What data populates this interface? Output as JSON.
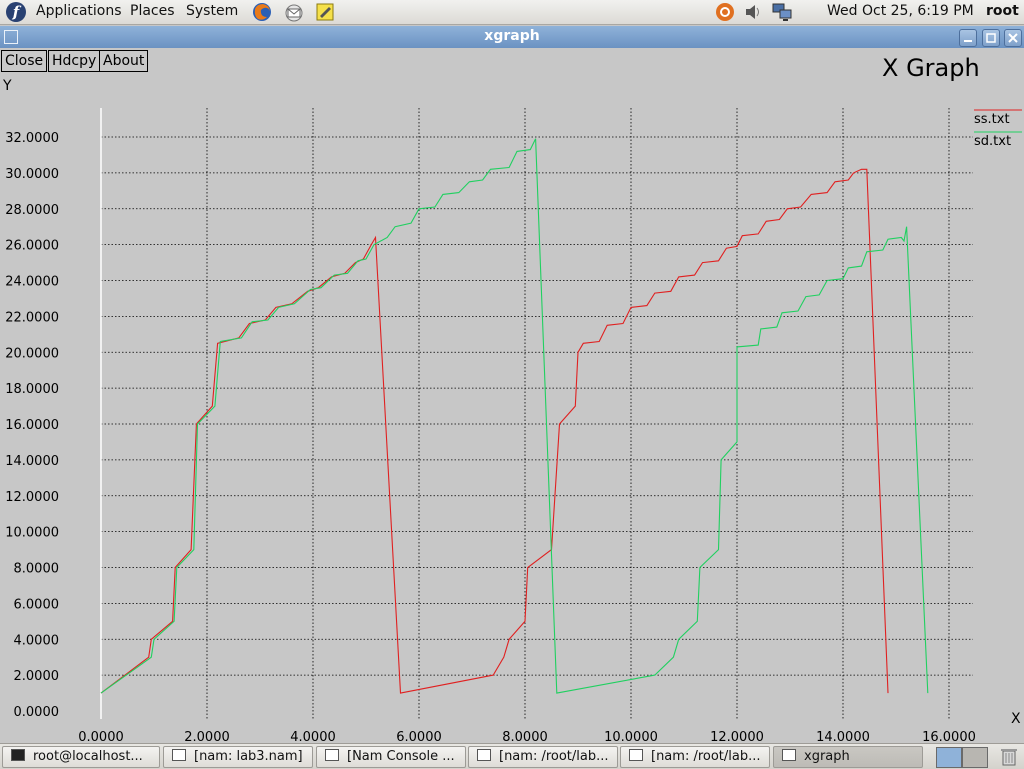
{
  "top_panel": {
    "menus": [
      "Applications",
      "Places",
      "System"
    ],
    "clock": "Wed Oct 25,  6:19 PM",
    "user": "root",
    "logo_letter": "f"
  },
  "window": {
    "title": "xgraph",
    "buttons": [
      "Close",
      "Hdcpy",
      "About"
    ],
    "graph_title": "X Graph",
    "accent": "#7aa0cc"
  },
  "chart_data": {
    "type": "line",
    "xlabel": "X",
    "ylabel": "Y",
    "xlim": [
      0,
      16
    ],
    "ylim": [
      0,
      32
    ],
    "grid": true,
    "legend": "top-right",
    "x_ticks": [
      "0.0000",
      "2.0000",
      "4.0000",
      "6.0000",
      "8.0000",
      "10.0000",
      "12.0000",
      "14.0000",
      "16.0000"
    ],
    "y_ticks": [
      "0.0000",
      "2.0000",
      "4.0000",
      "6.0000",
      "8.0000",
      "10.0000",
      "12.0000",
      "14.0000",
      "16.0000",
      "18.0000",
      "20.0000",
      "22.0000",
      "24.0000",
      "26.0000",
      "28.0000",
      "30.0000",
      "32.0000"
    ],
    "series": [
      {
        "name": "ss.txt",
        "color": "#e02020",
        "points": [
          [
            0.0,
            1.0
          ],
          [
            0.9,
            3.0
          ],
          [
            0.95,
            4.0
          ],
          [
            1.35,
            5.0
          ],
          [
            1.4,
            8.0
          ],
          [
            1.7,
            9.0
          ],
          [
            1.8,
            16.0
          ],
          [
            2.1,
            17.0
          ],
          [
            2.2,
            20.5
          ],
          [
            2.6,
            20.8
          ],
          [
            2.8,
            21.6
          ],
          [
            3.1,
            21.8
          ],
          [
            3.3,
            22.5
          ],
          [
            3.6,
            22.7
          ],
          [
            3.9,
            23.4
          ],
          [
            4.1,
            23.6
          ],
          [
            4.35,
            24.2
          ],
          [
            4.6,
            24.4
          ],
          [
            4.8,
            25.0
          ],
          [
            4.95,
            25.2
          ],
          [
            5.1,
            26.0
          ],
          [
            5.18,
            26.4
          ],
          [
            5.65,
            1.0
          ],
          [
            7.4,
            2.0
          ],
          [
            7.6,
            3.0
          ],
          [
            7.7,
            4.0
          ],
          [
            8.0,
            5.0
          ],
          [
            8.05,
            8.0
          ],
          [
            8.5,
            9.0
          ],
          [
            8.65,
            16.0
          ],
          [
            8.95,
            17.0
          ],
          [
            9.0,
            20.0
          ],
          [
            9.1,
            20.5
          ],
          [
            9.4,
            20.6
          ],
          [
            9.55,
            21.5
          ],
          [
            9.85,
            21.6
          ],
          [
            10.0,
            22.5
          ],
          [
            10.3,
            22.6
          ],
          [
            10.45,
            23.3
          ],
          [
            10.75,
            23.4
          ],
          [
            10.9,
            24.2
          ],
          [
            11.2,
            24.3
          ],
          [
            11.35,
            25.0
          ],
          [
            11.65,
            25.1
          ],
          [
            11.8,
            25.8
          ],
          [
            12.0,
            25.9
          ],
          [
            12.1,
            26.5
          ],
          [
            12.4,
            26.6
          ],
          [
            12.55,
            27.3
          ],
          [
            12.8,
            27.4
          ],
          [
            12.95,
            28.0
          ],
          [
            13.2,
            28.1
          ],
          [
            13.4,
            28.8
          ],
          [
            13.7,
            28.9
          ],
          [
            13.85,
            29.5
          ],
          [
            14.1,
            29.6
          ],
          [
            14.2,
            30.0
          ],
          [
            14.35,
            30.2
          ],
          [
            14.45,
            30.2
          ],
          [
            14.85,
            1.0
          ]
        ]
      },
      {
        "name": "sd.txt",
        "color": "#20d060",
        "points": [
          [
            0.0,
            1.0
          ],
          [
            0.95,
            3.0
          ],
          [
            1.0,
            4.0
          ],
          [
            1.38,
            5.0
          ],
          [
            1.43,
            8.0
          ],
          [
            1.75,
            9.0
          ],
          [
            1.82,
            16.0
          ],
          [
            2.15,
            17.0
          ],
          [
            2.25,
            20.6
          ],
          [
            2.65,
            20.8
          ],
          [
            2.85,
            21.7
          ],
          [
            3.15,
            21.8
          ],
          [
            3.35,
            22.5
          ],
          [
            3.65,
            22.7
          ],
          [
            3.95,
            23.5
          ],
          [
            4.15,
            23.6
          ],
          [
            4.4,
            24.3
          ],
          [
            4.65,
            24.4
          ],
          [
            4.85,
            25.1
          ],
          [
            5.0,
            25.2
          ],
          [
            5.15,
            26.0
          ],
          [
            5.4,
            26.4
          ],
          [
            5.55,
            27.0
          ],
          [
            5.85,
            27.2
          ],
          [
            6.0,
            28.0
          ],
          [
            6.3,
            28.1
          ],
          [
            6.45,
            28.8
          ],
          [
            6.75,
            28.9
          ],
          [
            6.95,
            29.5
          ],
          [
            7.2,
            29.6
          ],
          [
            7.35,
            30.2
          ],
          [
            7.7,
            30.3
          ],
          [
            7.85,
            31.2
          ],
          [
            8.1,
            31.3
          ],
          [
            8.2,
            31.9
          ],
          [
            8.6,
            1.0
          ],
          [
            10.45,
            2.0
          ],
          [
            10.8,
            3.0
          ],
          [
            10.9,
            4.0
          ],
          [
            11.25,
            5.0
          ],
          [
            11.3,
            8.0
          ],
          [
            11.65,
            9.0
          ],
          [
            11.7,
            14.0
          ],
          [
            12.0,
            15.0
          ],
          [
            12.0,
            20.3
          ],
          [
            12.4,
            20.4
          ],
          [
            12.45,
            21.3
          ],
          [
            12.75,
            21.4
          ],
          [
            12.85,
            22.2
          ],
          [
            13.15,
            22.3
          ],
          [
            13.3,
            23.1
          ],
          [
            13.55,
            23.2
          ],
          [
            13.7,
            24.0
          ],
          [
            14.0,
            24.1
          ],
          [
            14.1,
            24.7
          ],
          [
            14.35,
            24.8
          ],
          [
            14.45,
            25.6
          ],
          [
            14.75,
            25.7
          ],
          [
            14.85,
            26.3
          ],
          [
            15.1,
            26.4
          ],
          [
            15.15,
            26.2
          ],
          [
            15.2,
            27.0
          ],
          [
            15.6,
            1.0
          ]
        ]
      }
    ]
  },
  "taskbar": {
    "tasks": [
      "root@localhost...",
      "[nam: lab3.nam]",
      "[Nam Console ...",
      "[nam: /root/lab...",
      "[nam: /root/lab...",
      "xgraph"
    ]
  }
}
